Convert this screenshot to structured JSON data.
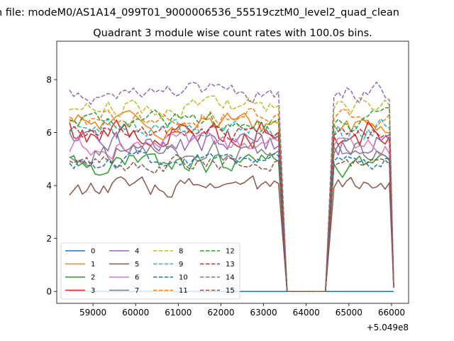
{
  "chart_data": {
    "type": "line",
    "suptitle": "n file: modeM0/AS1A14_099T01_9000006536_55519cztM0_level2_quad_clean",
    "title": "Quadrant 3 module wise count rates with 100.0s bins.",
    "xlabel": "",
    "ylabel": "",
    "x_offset_label": "+5.049e8",
    "xlim": [
      58150,
      66400
    ],
    "ylim": [
      -0.45,
      9.45
    ],
    "xticks": [
      59000,
      60000,
      61000,
      62000,
      63000,
      64000,
      65000,
      66000
    ],
    "xtick_labels": [
      "59000",
      "60000",
      "61000",
      "62000",
      "63000",
      "64000",
      "65000",
      "66000"
    ],
    "yticks": [
      0,
      2,
      4,
      6,
      8
    ],
    "ytick_labels": [
      "0",
      "2",
      "4",
      "6",
      "8"
    ],
    "grid": false,
    "legend_position": "lower-left",
    "legend_columns": 4,
    "time_segments": [
      {
        "start": 58450,
        "end": 63350,
        "step": 100
      },
      {
        "start": 64650,
        "end": 66050,
        "step": 100
      }
    ],
    "gap": [
      63550,
      64450
    ],
    "series": [
      {
        "name": "0",
        "color": "#1f77b4",
        "dashed": false,
        "base": 0.0,
        "noise": 0.0
      },
      {
        "name": "1",
        "color": "#ff7f0e",
        "dashed": false,
        "base": 6.3,
        "noise": 0.35
      },
      {
        "name": "2",
        "color": "#2ca02c",
        "dashed": false,
        "base": 4.8,
        "noise": 0.35
      },
      {
        "name": "3",
        "color": "#d62728",
        "dashed": false,
        "base": 6.0,
        "noise": 0.45
      },
      {
        "name": "4",
        "color": "#9467bd",
        "dashed": false,
        "base": 5.6,
        "noise": 0.4
      },
      {
        "name": "5",
        "color": "#8c564b",
        "dashed": false,
        "base": 3.9,
        "noise": 0.3
      },
      {
        "name": "6",
        "color": "#e377c2",
        "dashed": false,
        "base": 5.5,
        "noise": 0.3
      },
      {
        "name": "7",
        "color": "#7f7f7f",
        "dashed": false,
        "base": 5.3,
        "noise": 0.35
      },
      {
        "name": "8",
        "color": "#bcbd22",
        "dashed": true,
        "base": 7.0,
        "noise": 0.3
      },
      {
        "name": "9",
        "color": "#17becf",
        "dashed": true,
        "base": 6.1,
        "noise": 0.35
      },
      {
        "name": "10",
        "color": "#1f77b4",
        "dashed": true,
        "base": 4.9,
        "noise": 0.25
      },
      {
        "name": "11",
        "color": "#ff7f0e",
        "dashed": true,
        "base": 6.6,
        "noise": 0.3
      },
      {
        "name": "12",
        "color": "#2ca02c",
        "dashed": true,
        "base": 6.4,
        "noise": 0.3
      },
      {
        "name": "13",
        "color": "#d62728",
        "dashed": true,
        "base": 6.0,
        "noise": 0.25
      },
      {
        "name": "14",
        "color": "#9467bd",
        "dashed": true,
        "base": 7.5,
        "noise": 0.3
      },
      {
        "name": "15",
        "color": "#8c564b",
        "dashed": true,
        "base": 4.8,
        "noise": 0.25
      }
    ]
  }
}
